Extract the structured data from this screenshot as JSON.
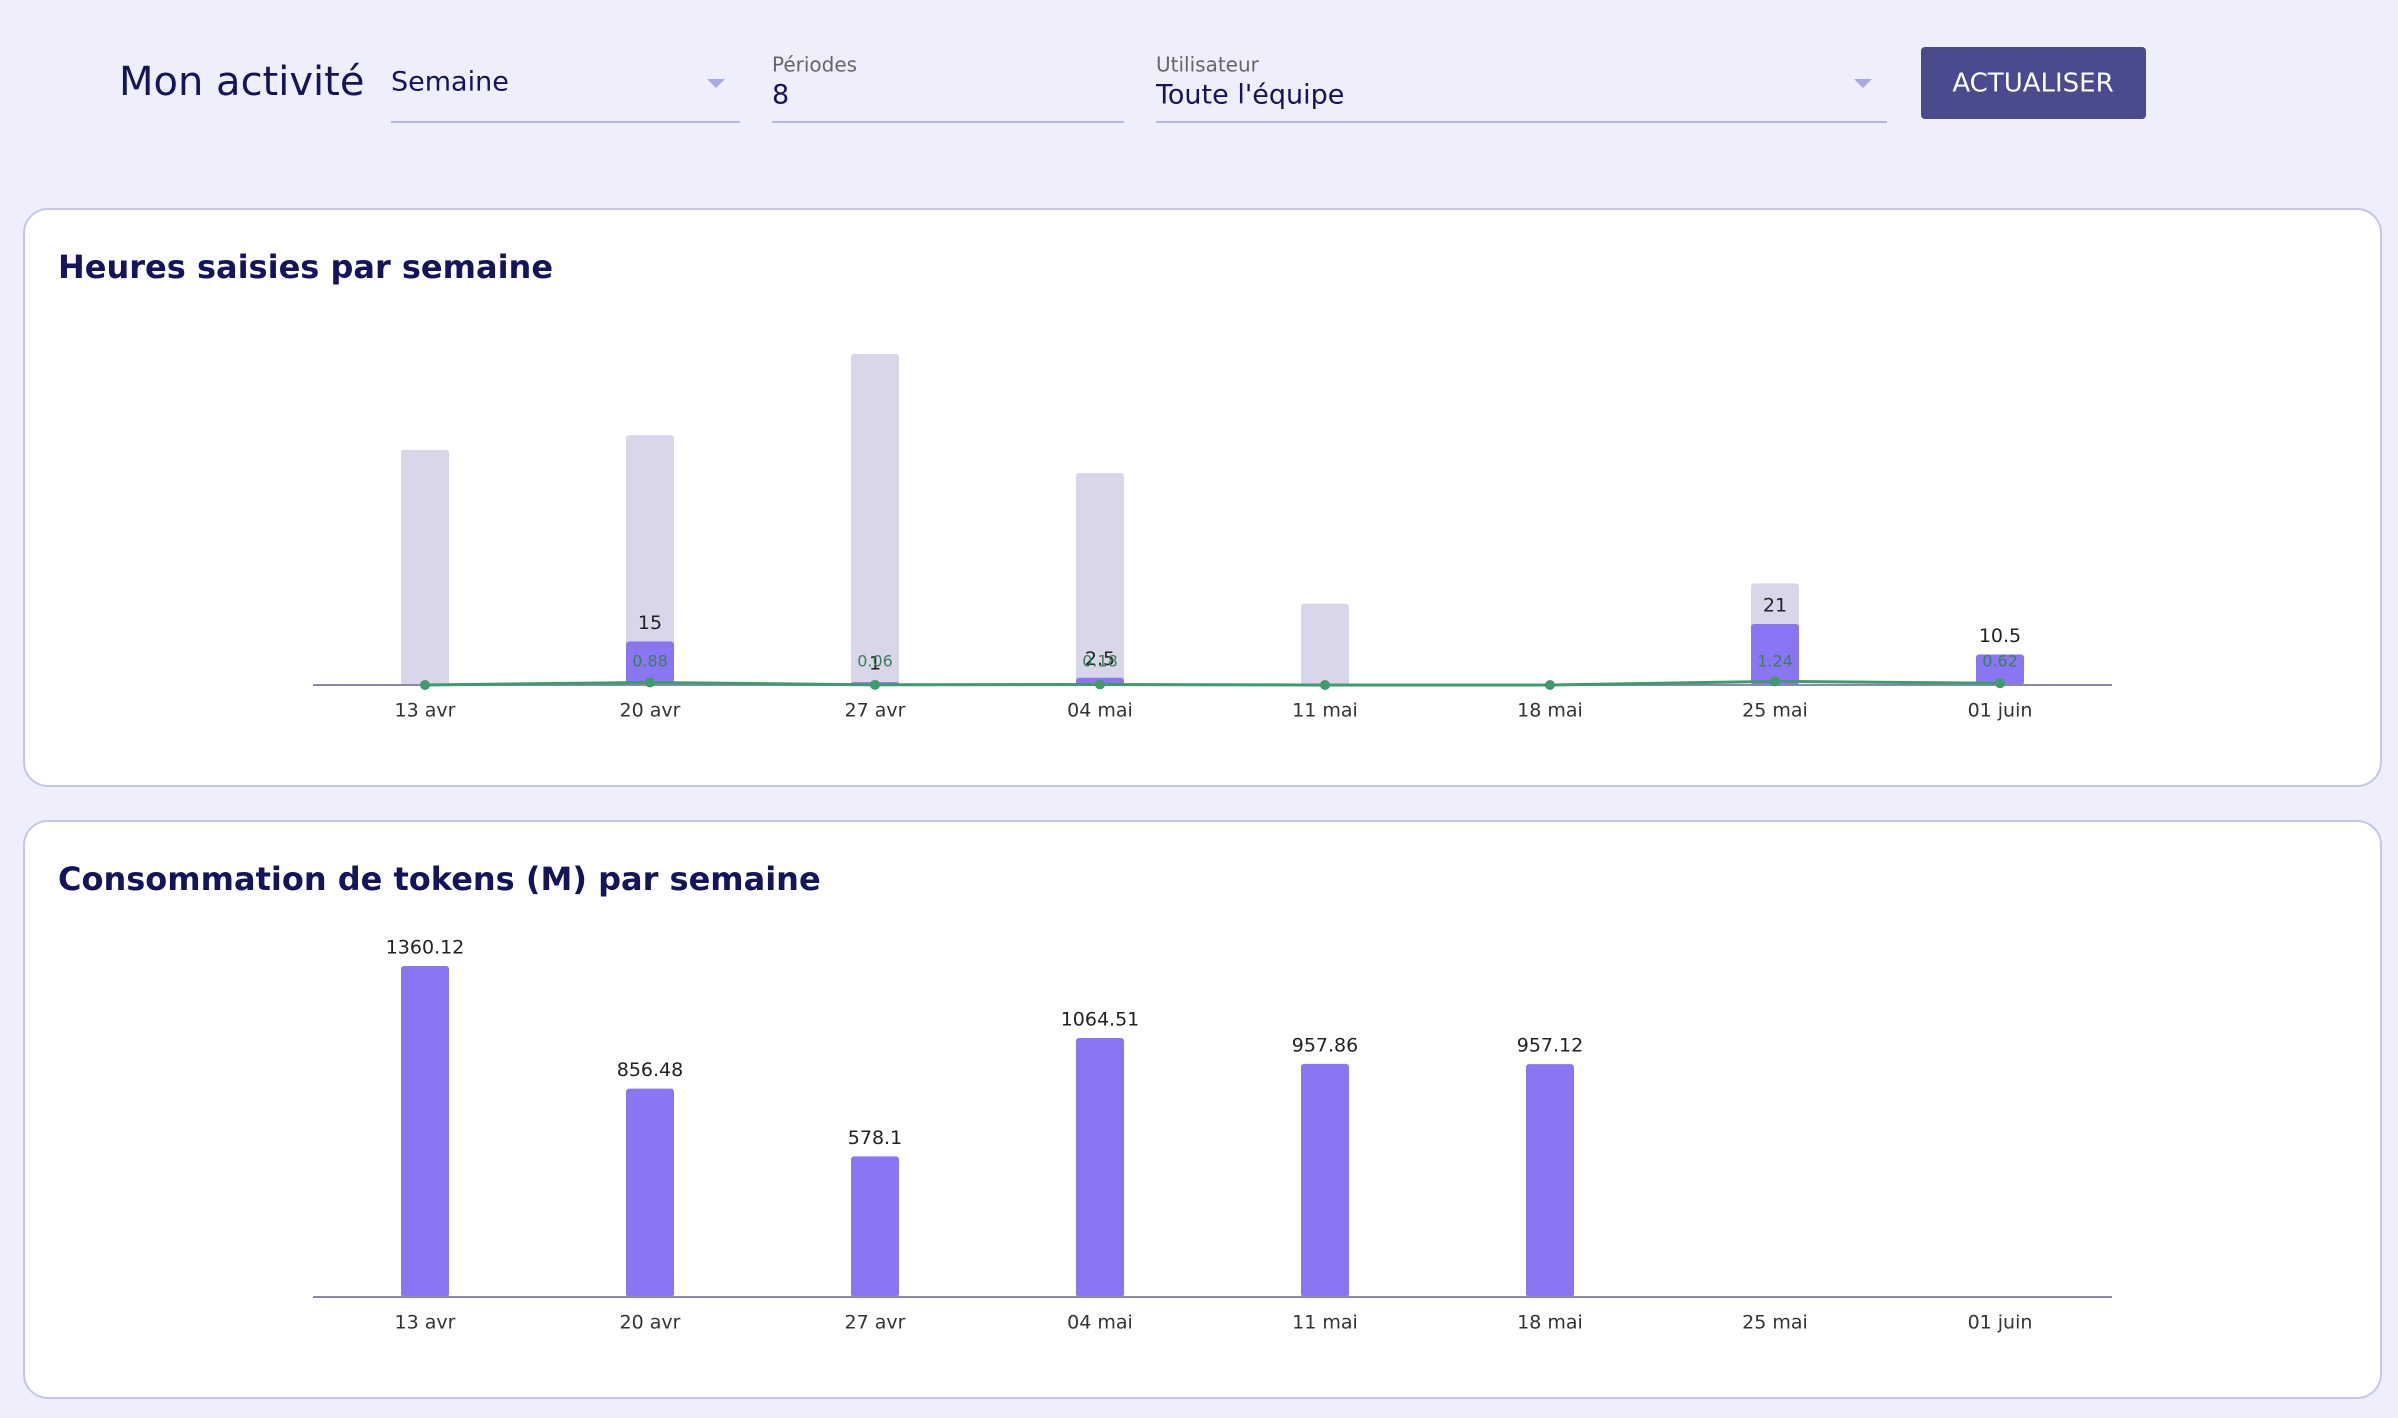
{
  "header": {
    "title": "Mon activité",
    "period_select": "Semaine",
    "periods_label": "Périodes",
    "periods_value": "8",
    "user_label": "Utilisateur",
    "user_value": "Toute l'équipe",
    "button": "ACTUALISER"
  },
  "chart_data": [
    {
      "type": "bar",
      "title": "Heures saisies par semaine",
      "categories": [
        "13 avr",
        "20 avr",
        "27 avr",
        "04 mai",
        "11 mai",
        "18 mai",
        "25 mai",
        "01 juin"
      ],
      "series": [
        {
          "type": "bar",
          "color": "#d8d6e8",
          "values": [
            81,
            86,
            114,
            73,
            28,
            0,
            35,
            10.5
          ],
          "labels": false
        },
        {
          "type": "bar",
          "color": "#8a76f2",
          "values": [
            null,
            15,
            1,
            2.5,
            null,
            null,
            21,
            10.5
          ],
          "labels": true
        },
        {
          "type": "line",
          "color": "#3f9a6c",
          "values": [
            0,
            0.88,
            0.06,
            0.18,
            0,
            0,
            1.24,
            0.62
          ],
          "labels": true
        }
      ]
    },
    {
      "type": "bar",
      "title": "Consommation de tokens (M) par semaine",
      "categories": [
        "13 avr",
        "20 avr",
        "27 avr",
        "04 mai",
        "11 mai",
        "18 mai",
        "25 mai",
        "01 juin"
      ],
      "series": [
        {
          "type": "bar",
          "color": "#8a76f2",
          "values": [
            1360.12,
            856.48,
            578.1,
            1064.51,
            957.86,
            957.12,
            null,
            null
          ],
          "labels": true
        }
      ]
    }
  ]
}
